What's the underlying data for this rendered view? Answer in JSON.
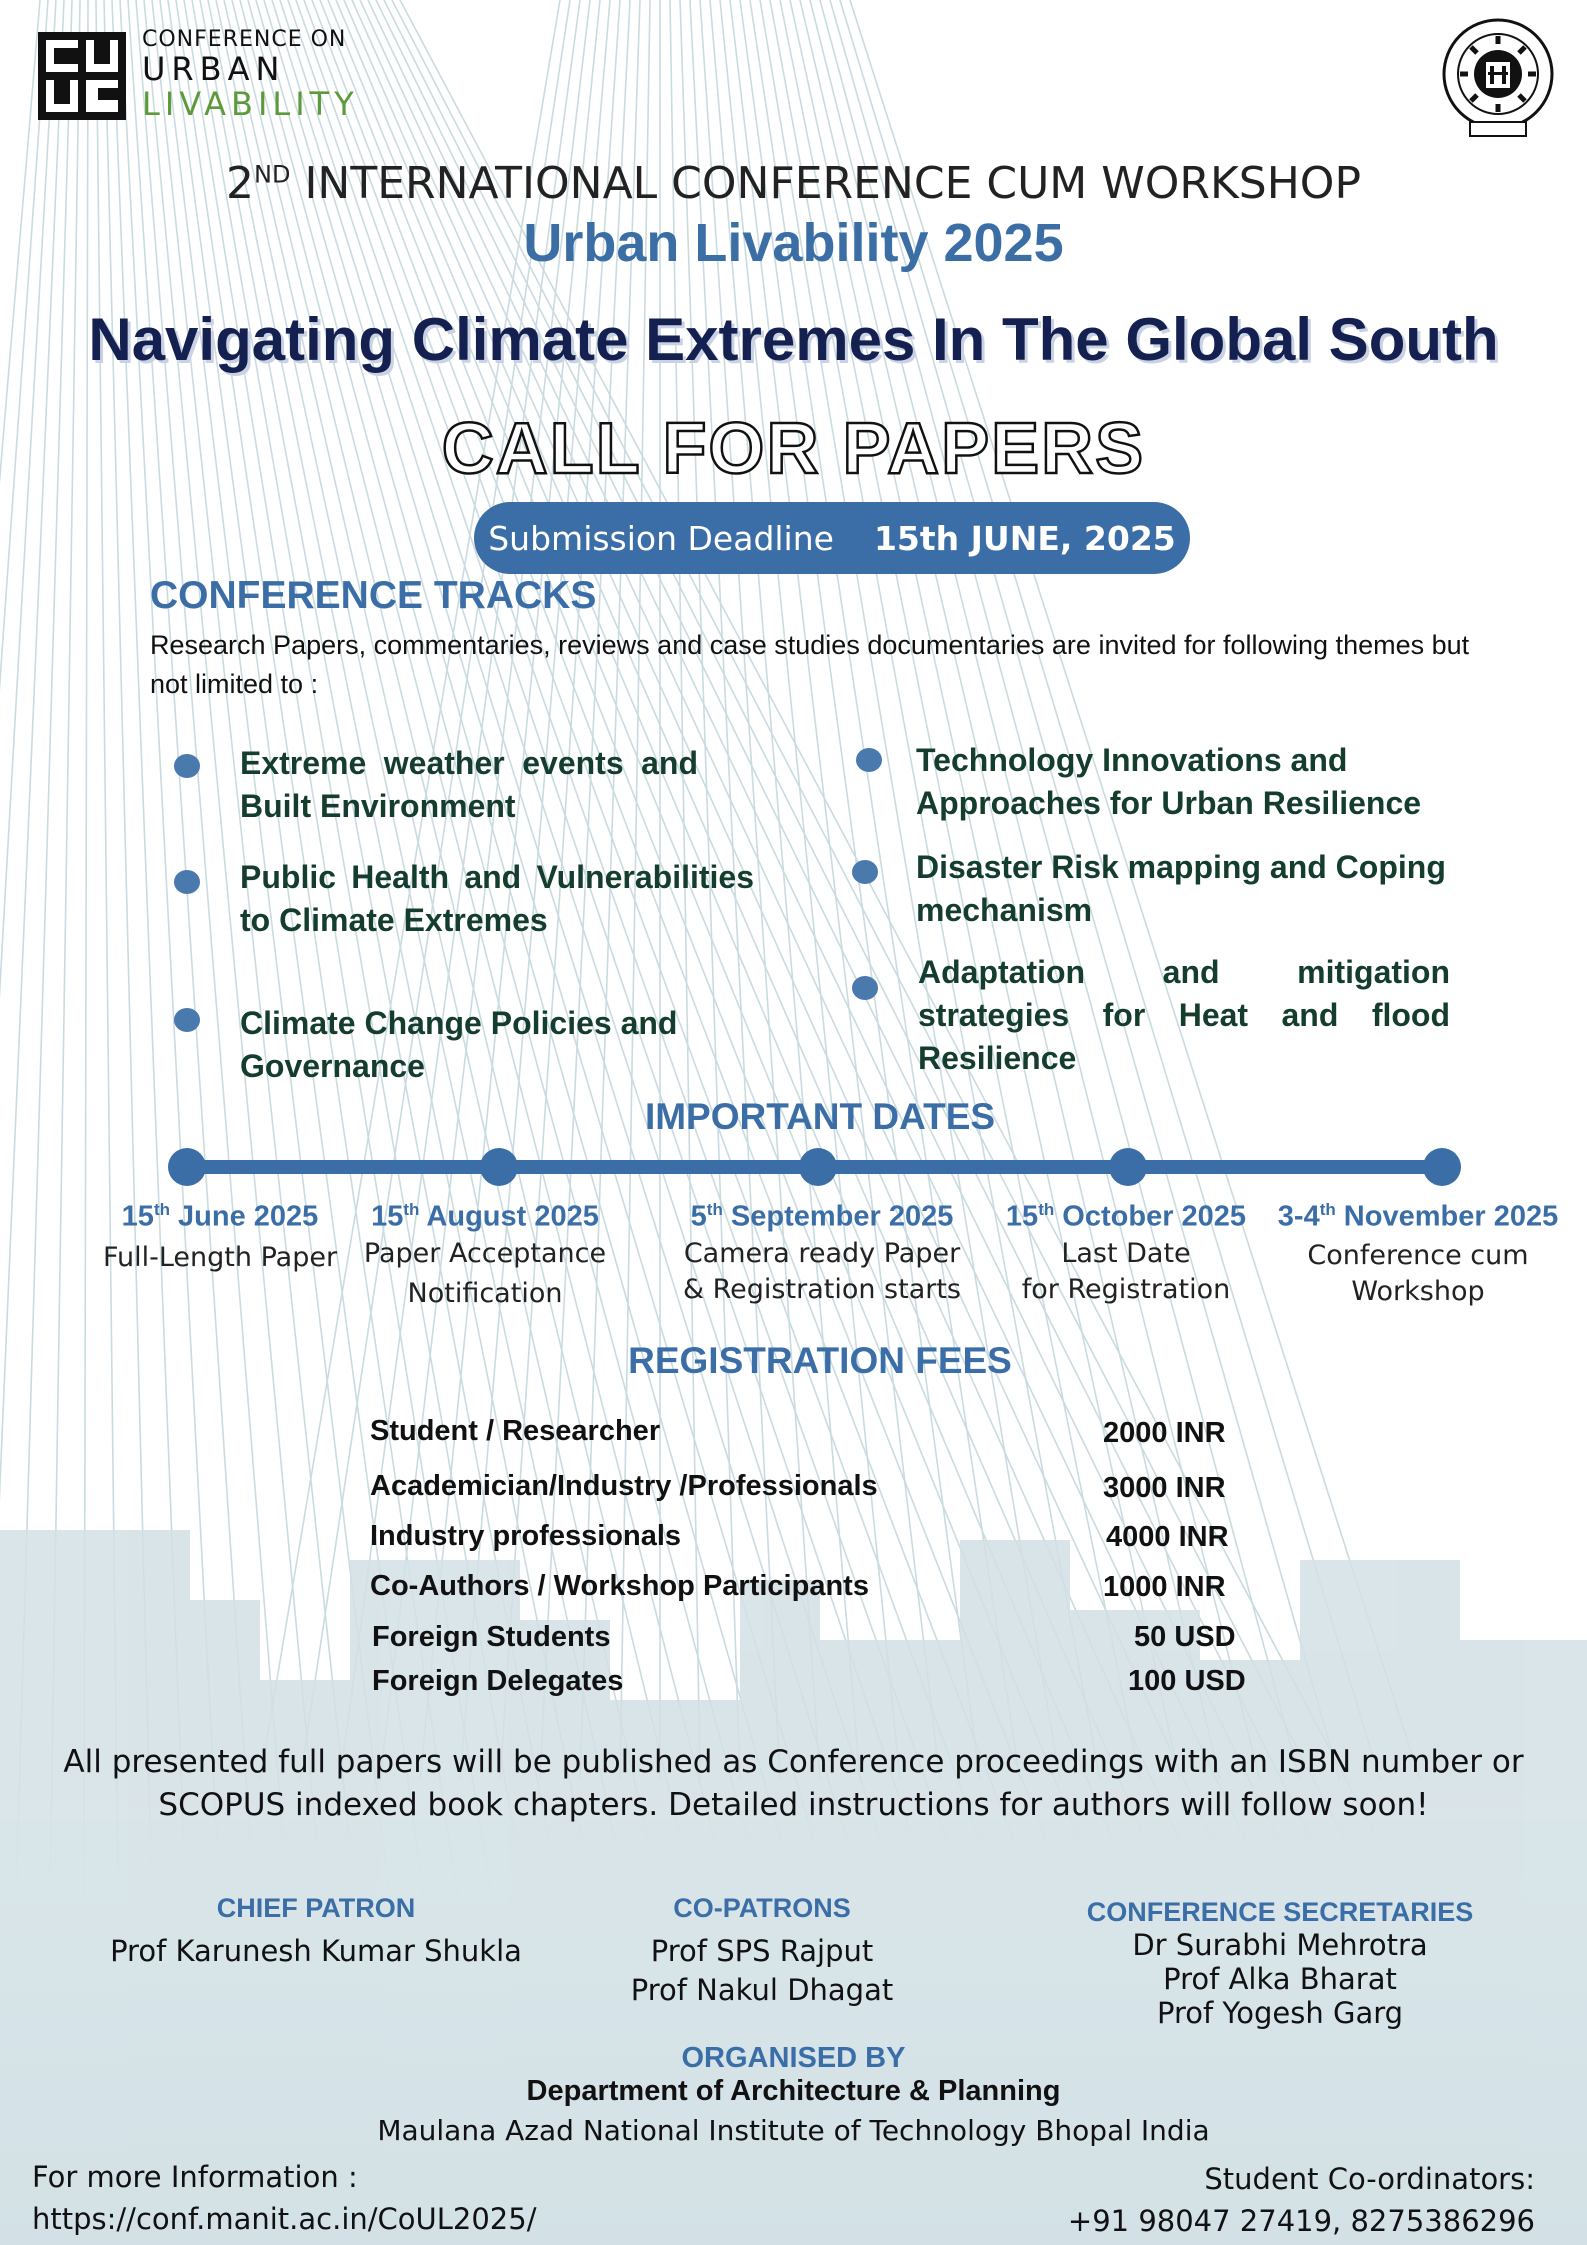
{
  "header": {
    "logo": {
      "line1": "CONFERENCE ON",
      "line2": "URBAN",
      "line3": "LIVABILITY"
    },
    "edition_ordinal": "2",
    "edition_suffix": "ND",
    "edition_text": " INTERNATIONAL CONFERENCE CUM WORKSHOP",
    "event_name": "Urban Livability 2025",
    "theme": "Navigating Climate Extremes In The Global South",
    "call": "CALL FOR PAPERS",
    "deadline_label": "Submission Deadline",
    "deadline_date": "15th JUNE, 2025"
  },
  "tracks": {
    "heading": "CONFERENCE TRACKS",
    "intro": "Research Papers, commentaries, reviews and case studies documentaries  are invited for following themes but not limited to :",
    "items": [
      "Extreme weather events and Built Environment",
      "Public Health and Vulnerabilities to Climate Extremes",
      "Climate Change Policies and Governance",
      "Technology Innovations and Approaches for Urban Resilience",
      "Disaster Risk mapping and Coping mechanism",
      "Adaptation and mitigation strategies for Heat and flood Resilience"
    ]
  },
  "dates": {
    "heading": "IMPORTANT DATES",
    "items": [
      {
        "day": "15",
        "sup": "th",
        "rest": " June 2025",
        "desc1": "Full-Length Paper",
        "desc2": ""
      },
      {
        "day": "15",
        "sup": "th",
        "rest": " August 2025",
        "desc1": "Paper Acceptance",
        "desc2": "Notification"
      },
      {
        "day": "5",
        "sup": "th",
        "rest": " September 2025",
        "desc1": "Camera ready Paper",
        "desc2": "&  Registration starts"
      },
      {
        "day": "15",
        "sup": "th",
        "rest": " October 2025",
        "desc1": "Last Date",
        "desc2": "for Registration"
      },
      {
        "day": "3-4",
        "sup": "th",
        "rest": " November 2025",
        "desc1": "Conference cum",
        "desc2": "Workshop"
      }
    ]
  },
  "fees": {
    "heading": "REGISTRATION FEES",
    "rows": [
      {
        "category": "Student / Researcher",
        "amount": "2000 INR"
      },
      {
        "category": "Academician/Industry /Professionals",
        "amount": "3000 INR"
      },
      {
        "category": "Industry professionals",
        "amount": "4000 INR"
      },
      {
        "category": "Co-Authors / Workshop Participants",
        "amount": "1000  INR"
      },
      {
        "category": "Foreign Students",
        "amount": "50 USD"
      },
      {
        "category": "Foreign Delegates",
        "amount": "100 USD"
      }
    ]
  },
  "publication_note": "All presented full papers will be published as Conference proceedings with an ISBN number or SCOPUS indexed book chapters. Detailed instructions for authors will follow soon!",
  "committee": {
    "chief_patron": {
      "title": "CHIEF PATRON",
      "names": [
        "Prof Karunesh Kumar Shukla"
      ]
    },
    "co_patrons": {
      "title": "CO-PATRONS",
      "names": [
        "Prof SPS Rajput",
        "Prof Nakul Dhagat"
      ]
    },
    "secretaries": {
      "title": "CONFERENCE SECRETARIES",
      "names": [
        "Dr Surabhi Mehrotra",
        "Prof Alka Bharat",
        "Prof Yogesh Garg"
      ]
    }
  },
  "organiser": {
    "heading": "ORGANISED BY",
    "department": "Department of Architecture & Planning",
    "institute": "Maulana Azad National  Institute of Technology Bhopal India"
  },
  "footer": {
    "info_label": "For more Information :",
    "url": "https://conf.manit.ac.in/CoUL2025/",
    "coord_label": "Student Co-ordinators:",
    "phones": "+91 98047 27419, 8275386296"
  },
  "colors": {
    "accent": "#3b6ea6",
    "title_navy": "#14204f",
    "track_green": "#143d2e",
    "logo_green": "#5d9a3b"
  }
}
